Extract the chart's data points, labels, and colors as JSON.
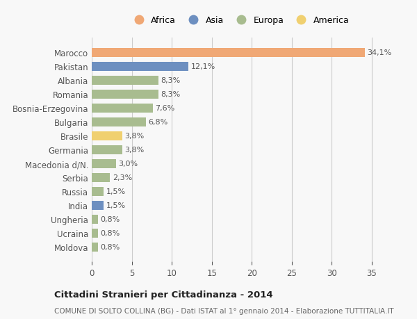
{
  "countries": [
    "Marocco",
    "Pakistan",
    "Albania",
    "Romania",
    "Bosnia-Erzegovina",
    "Bulgaria",
    "Brasile",
    "Germania",
    "Macedonia d/N.",
    "Serbia",
    "Russia",
    "India",
    "Ungheria",
    "Ucraina",
    "Moldova"
  ],
  "values": [
    34.1,
    12.1,
    8.3,
    8.3,
    7.6,
    6.8,
    3.8,
    3.8,
    3.0,
    2.3,
    1.5,
    1.5,
    0.8,
    0.8,
    0.8
  ],
  "labels": [
    "34,1%",
    "12,1%",
    "8,3%",
    "8,3%",
    "7,6%",
    "6,8%",
    "3,8%",
    "3,8%",
    "3,0%",
    "2,3%",
    "1,5%",
    "1,5%",
    "0,8%",
    "0,8%",
    "0,8%"
  ],
  "continents": [
    "Africa",
    "Asia",
    "Europa",
    "Europa",
    "Europa",
    "Europa",
    "America",
    "Europa",
    "Europa",
    "Europa",
    "Europa",
    "Asia",
    "Europa",
    "Europa",
    "Europa"
  ],
  "colors": {
    "Africa": "#F0A875",
    "Asia": "#6D8FC0",
    "Europa": "#A8BC8F",
    "America": "#F0D070"
  },
  "legend_order": [
    "Africa",
    "Asia",
    "Europa",
    "America"
  ],
  "legend_colors": [
    "#F0A875",
    "#6D8FC0",
    "#A8BC8F",
    "#F0D070"
  ],
  "xlim": [
    0,
    37
  ],
  "xticks": [
    0,
    5,
    10,
    15,
    20,
    25,
    30,
    35
  ],
  "title": "Cittadini Stranieri per Cittadinanza - 2014",
  "subtitle": "COMUNE DI SOLTO COLLINA (BG) - Dati ISTAT al 1° gennaio 2014 - Elaborazione TUTTITALIA.IT",
  "bg_color": "#f8f8f8",
  "bar_height": 0.65
}
